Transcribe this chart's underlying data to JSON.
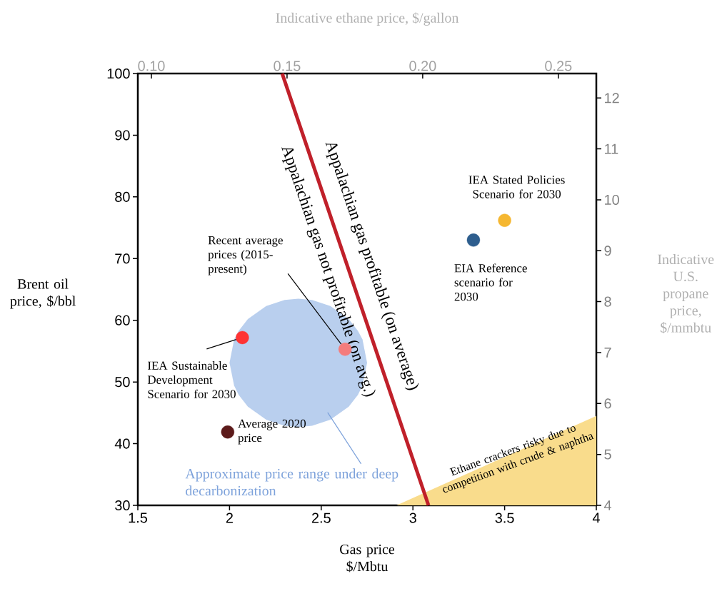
{
  "chart_data": {
    "type": "scatter",
    "xlabel": "Gas price $/Mbtu",
    "ylabel": "Brent oil price, $/bbl",
    "x2label": "Indicative ethane price, $/gallon",
    "y2label": "Indicative U.S. propane price, $/mmbtu",
    "xlim": [
      1.5,
      4
    ],
    "xticks": [
      1.5,
      2,
      2.5,
      3,
      3.5,
      4
    ],
    "ylim": [
      30,
      100
    ],
    "yticks": [
      30,
      40,
      50,
      60,
      70,
      80,
      90,
      100
    ],
    "x2lim": [
      0.095,
      0.264
    ],
    "x2ticks": [
      {
        "value": 0.1,
        "label": "0.10"
      },
      {
        "value": 0.15,
        "label": "0.15"
      },
      {
        "value": 0.2,
        "label": "0.20"
      },
      {
        "value": 0.25,
        "label": "0.25"
      }
    ],
    "y2lim": [
      4,
      12.48
    ],
    "y2ticks": [
      4,
      5,
      6,
      7,
      8,
      9,
      10,
      11,
      12
    ],
    "series": [
      {
        "type": "area",
        "x": [
          2.0,
          2.025,
          2.05,
          2.1,
          2.2,
          2.3,
          2.375,
          2.45,
          2.55,
          2.65,
          2.7,
          2.725,
          2.75
        ],
        "values": [
          null,
          null,
          null,
          null,
          null,
          null,
          null,
          null,
          null,
          null,
          null,
          null,
          null
        ],
        "upper": [
          53.1,
          56.9,
          58.3,
          60.2,
          62.3,
          63.3,
          63.5,
          63.3,
          62.3,
          60.2,
          58.3,
          56.9,
          53.1
        ],
        "lower": [
          53.1,
          49.4,
          47.9,
          46.0,
          43.9,
          42.9,
          42.7,
          42.9,
          43.9,
          46.0,
          47.9,
          49.4,
          53.1
        ],
        "color": "#b9cfee"
      },
      {
        "type": "area",
        "x": [
          2.91,
          4
        ],
        "values": [
          30,
          44.5
        ],
        "color": "#f9dc8c"
      },
      {
        "type": "line",
        "x": [
          2.287,
          3.085
        ],
        "values": [
          100,
          30
        ],
        "color": "#c0202a"
      },
      {
        "type": "scatter",
        "marker": "circle",
        "x": [
          2.07,
          2.63,
          1.99,
          3.33,
          3.5
        ],
        "values": [
          57.2,
          55.3,
          41.9,
          73,
          76.2
        ],
        "colors": [
          "#ff3333",
          "#f47c7c",
          "#5c1a1a",
          "#2e5e8e",
          "#f5b731"
        ]
      }
    ],
    "annotations": [
      "Appalachian gas profitable (on average)",
      "Appalachian gas not profitable (on avg.)",
      {
        "text": "Recent average prices (2015-present)",
        "x": 2.63,
        "y": 55.3
      },
      {
        "text": "IEA Sustainable Development Scenario for 2030",
        "x": 2.07,
        "y": 57.2
      },
      {
        "text": "Average 2020 price",
        "x": 1.99,
        "y": 41.9
      },
      {
        "text": "IEA Stated Policies Scenario for 2030",
        "x": 3.5,
        "y": 76.2
      },
      {
        "text": "EIA Reference scenario for 2030",
        "x": 3.33,
        "y": 73
      },
      "Approximate price range under deep decarbonization",
      "Ethane crackers risky due to competition with crude & naphtha"
    ]
  }
}
